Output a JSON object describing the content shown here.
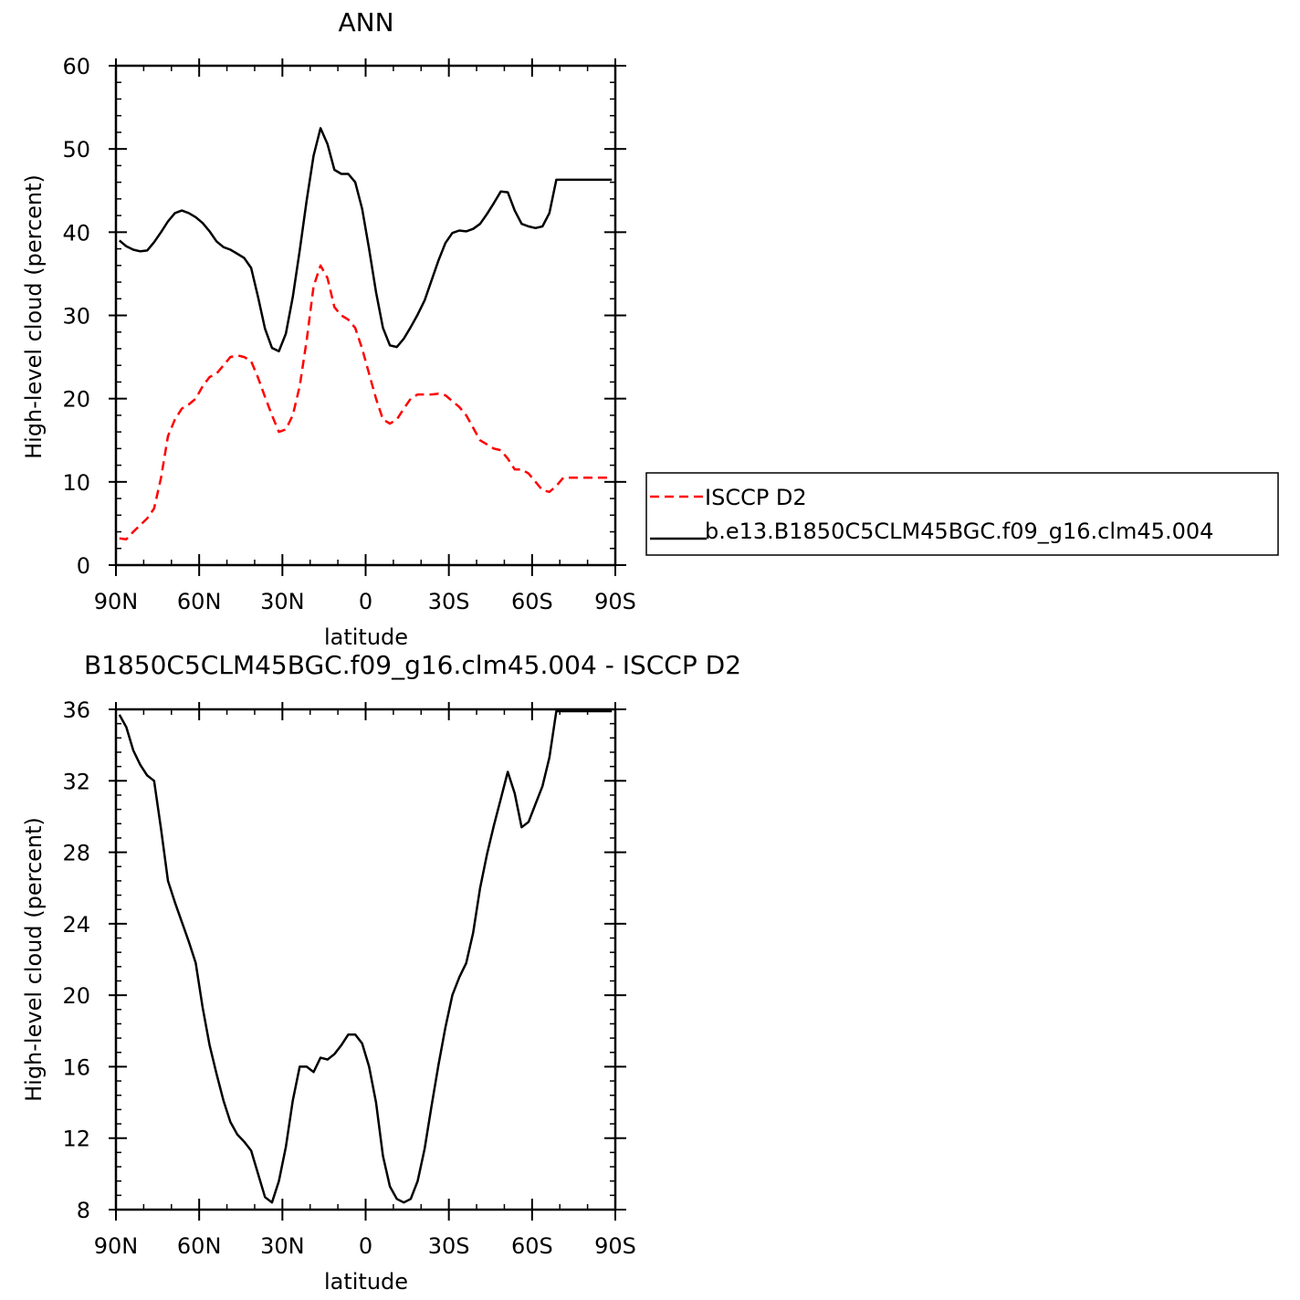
{
  "chart_data": [
    {
      "type": "line",
      "title": "ANN",
      "xlabel": "latitude",
      "ylabel": "High-level cloud (percent)",
      "xlim": [
        90,
        -90
      ],
      "ylim": [
        0,
        60
      ],
      "y_major_ticks": [
        0,
        10,
        20,
        30,
        40,
        50,
        60
      ],
      "x_major_ticks": [
        90,
        60,
        30,
        0,
        -30,
        -60,
        -90
      ],
      "x_tick_labels": [
        "90N",
        "60N",
        "30N",
        "0",
        "30S",
        "60S",
        "90S"
      ],
      "legend_position": "right",
      "series": [
        {
          "name": "ISCCP D2",
          "color": "#ff0000",
          "dash": "dashed",
          "x": [
            88.75,
            86.25,
            83.75,
            81.25,
            78.75,
            76.25,
            73.75,
            71.25,
            68.75,
            66.25,
            63.75,
            61.25,
            58.75,
            56.25,
            53.75,
            51.25,
            48.75,
            46.25,
            43.75,
            41.25,
            38.75,
            36.25,
            33.75,
            31.25,
            28.75,
            26.25,
            23.75,
            21.25,
            18.75,
            16.25,
            13.75,
            11.25,
            8.75,
            6.25,
            3.75,
            1.25,
            -1.25,
            -3.75,
            -6.25,
            -8.75,
            -11.25,
            -13.75,
            -16.25,
            -18.75,
            -21.25,
            -23.75,
            -26.25,
            -28.75,
            -31.25,
            -33.75,
            -36.25,
            -38.75,
            -41.25,
            -43.75,
            -46.25,
            -48.75,
            -51.25,
            -53.75,
            -56.25,
            -58.75,
            -61.25,
            -63.75,
            -66.25,
            -68.75,
            -71.25,
            -73.75,
            -76.25,
            -78.75,
            -81.25,
            -83.75,
            -86.25,
            -88.75
          ],
          "y": [
            3.2,
            3.1,
            4.0,
            4.8,
            5.6,
            6.8,
            10.5,
            15.5,
            17.5,
            18.8,
            19.3,
            20.0,
            21.5,
            22.6,
            23.0,
            24.0,
            25.0,
            25.2,
            25.0,
            24.5,
            22.5,
            20.2,
            18.0,
            16.0,
            16.3,
            18.0,
            21.5,
            27.0,
            33.5,
            36.0,
            34.5,
            31.0,
            30.0,
            29.5,
            28.5,
            26.0,
            23.0,
            20.0,
            17.5,
            17.0,
            17.5,
            18.8,
            20.0,
            20.5,
            20.5,
            20.5,
            20.6,
            20.4,
            19.7,
            19.0,
            18.0,
            16.5,
            15.0,
            14.5,
            14.0,
            13.8,
            12.8,
            11.5,
            11.5,
            11.0,
            10.0,
            9.0,
            8.8,
            9.5,
            10.5,
            10.5,
            10.5,
            10.5,
            10.5,
            10.5,
            10.5,
            10.5
          ]
        },
        {
          "name": "b.e13.B1850C5CLM45BGC.f09_g16.clm45.004",
          "color": "#000000",
          "dash": "solid",
          "x": [
            88.75,
            86.25,
            83.75,
            81.25,
            78.75,
            76.25,
            73.75,
            71.25,
            68.75,
            66.25,
            63.75,
            61.25,
            58.75,
            56.25,
            53.75,
            51.25,
            48.75,
            46.25,
            43.75,
            41.25,
            38.75,
            36.25,
            33.75,
            31.25,
            28.75,
            26.25,
            23.75,
            21.25,
            18.75,
            16.25,
            13.75,
            11.25,
            8.75,
            6.25,
            3.75,
            1.25,
            -1.25,
            -3.75,
            -6.25,
            -8.75,
            -11.25,
            -13.75,
            -16.25,
            -18.75,
            -21.25,
            -23.75,
            -26.25,
            -28.75,
            -31.25,
            -33.75,
            -36.25,
            -38.75,
            -41.25,
            -43.75,
            -46.25,
            -48.75,
            -51.25,
            -53.75,
            -56.25,
            -58.75,
            -61.25,
            -63.75,
            -66.25,
            -68.75,
            -71.25,
            -73.75,
            -76.25,
            -78.75,
            -81.25,
            -83.75,
            -86.25,
            -88.75
          ],
          "y": [
            39.0,
            38.3,
            37.9,
            37.7,
            37.8,
            38.8,
            40.0,
            41.3,
            42.3,
            42.6,
            42.3,
            41.8,
            41.1,
            40.1,
            38.9,
            38.2,
            37.9,
            37.4,
            36.9,
            35.7,
            32.2,
            28.4,
            26.1,
            25.7,
            27.8,
            32.2,
            37.8,
            43.8,
            49.2,
            52.5,
            50.6,
            47.5,
            47.0,
            47.0,
            46.0,
            42.8,
            38.0,
            32.8,
            28.5,
            26.4,
            26.2,
            27.2,
            28.6,
            30.1,
            31.8,
            34.2,
            36.6,
            38.7,
            39.9,
            40.2,
            40.1,
            40.4,
            41.0,
            42.2,
            43.5,
            44.9,
            44.8,
            42.6,
            41.0,
            40.7,
            40.5,
            40.7,
            42.3,
            46.3,
            46.3,
            46.3,
            46.3,
            46.3,
            46.3,
            46.3,
            46.3,
            46.3
          ]
        }
      ]
    },
    {
      "type": "line",
      "title": "B1850C5CLM45BGC.f09_g16.clm45.004 - ISCCP D2",
      "xlabel": "latitude",
      "ylabel": "High-level cloud (percent)",
      "xlim": [
        90,
        -90
      ],
      "ylim": [
        8,
        36
      ],
      "y_major_ticks": [
        8,
        12,
        16,
        20,
        24,
        28,
        32,
        36
      ],
      "x_major_ticks": [
        90,
        60,
        30,
        0,
        -30,
        -60,
        -90
      ],
      "x_tick_labels": [
        "90N",
        "60N",
        "30N",
        "0",
        "30S",
        "60S",
        "90S"
      ],
      "series": [
        {
          "color": "#000000",
          "dash": "solid",
          "x": [
            88.75,
            86.25,
            83.75,
            81.25,
            78.75,
            76.25,
            73.75,
            71.25,
            68.75,
            66.25,
            63.75,
            61.25,
            58.75,
            56.25,
            53.75,
            51.25,
            48.75,
            46.25,
            43.75,
            41.25,
            38.75,
            36.25,
            33.75,
            31.25,
            28.75,
            26.25,
            23.75,
            21.25,
            18.75,
            16.25,
            13.75,
            11.25,
            8.75,
            6.25,
            3.75,
            1.25,
            -1.25,
            -3.75,
            -6.25,
            -8.75,
            -11.25,
            -13.75,
            -16.25,
            -18.75,
            -21.25,
            -23.75,
            -26.25,
            -28.75,
            -31.25,
            -33.75,
            -36.25,
            -38.75,
            -41.25,
            -43.75,
            -46.25,
            -48.75,
            -51.25,
            -53.75,
            -56.25,
            -58.75,
            -61.25,
            -63.75,
            -66.25,
            -68.75,
            -71.25,
            -73.75,
            -76.25,
            -78.75,
            -81.25,
            -83.75,
            -86.25,
            -88.75
          ],
          "y": [
            35.7,
            35.0,
            33.7,
            32.9,
            32.3,
            32.0,
            29.3,
            26.4,
            25.2,
            24.1,
            23.0,
            21.8,
            19.3,
            17.2,
            15.6,
            14.1,
            12.9,
            12.2,
            11.8,
            11.3,
            10.0,
            8.7,
            8.4,
            9.6,
            11.5,
            14.1,
            16.0,
            16.0,
            15.7,
            16.5,
            16.4,
            16.7,
            17.2,
            17.8,
            17.8,
            17.3,
            16.0,
            14.0,
            11.0,
            9.3,
            8.6,
            8.4,
            8.6,
            9.6,
            11.4,
            13.8,
            16.1,
            18.2,
            20.0,
            21.0,
            21.8,
            23.5,
            26.0,
            27.9,
            29.5,
            31.0,
            32.5,
            31.3,
            29.4,
            29.7,
            30.7,
            31.7,
            33.3,
            35.9,
            35.9,
            35.9,
            35.9,
            35.9,
            35.9,
            35.9,
            35.9,
            35.9
          ]
        }
      ]
    }
  ]
}
